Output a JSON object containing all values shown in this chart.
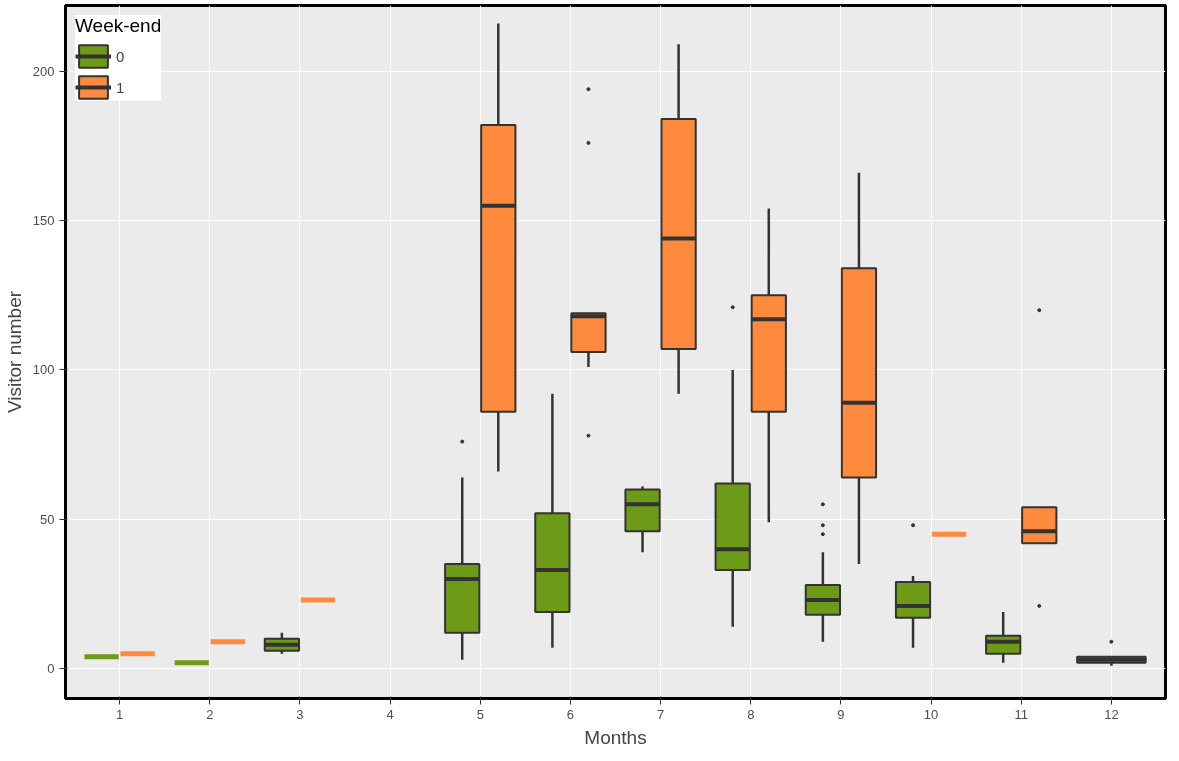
{
  "chart_data": {
    "type": "box",
    "xlabel": "Months",
    "ylabel": "Visitor number",
    "legend_title": "Week-end",
    "legend": "top left",
    "grid": true,
    "categories": [
      "1",
      "2",
      "3",
      "4",
      "5",
      "6",
      "7",
      "8",
      "9",
      "10",
      "11",
      "12"
    ],
    "ylim": [
      -10,
      222
    ],
    "yticks": [
      0,
      50,
      100,
      150,
      200
    ],
    "series": [
      {
        "name": "0",
        "color": "#6e9b17",
        "boxes": [
          {
            "low": 4,
            "q1": 4,
            "median": 4,
            "q3": 4,
            "high": 4
          },
          {
            "low": 2,
            "q1": 2,
            "median": 2,
            "q3": 2,
            "high": 2
          },
          {
            "low": 5,
            "q1": 6,
            "median": 8,
            "q3": 10,
            "high": 12
          },
          null,
          {
            "low": 3,
            "q1": 12,
            "median": 30,
            "q3": 35,
            "high": 64,
            "outliers": [
              76
            ]
          },
          {
            "low": 7,
            "q1": 19,
            "median": 33,
            "q3": 52,
            "high": 92
          },
          {
            "low": 39,
            "q1": 46,
            "median": 55,
            "q3": 60,
            "high": 61
          },
          {
            "low": 14,
            "q1": 33,
            "median": 40,
            "q3": 62,
            "high": 100,
            "outliers": [
              121
            ]
          },
          {
            "low": 9,
            "q1": 18,
            "median": 23,
            "q3": 28,
            "high": 39,
            "outliers": [
              45,
              48,
              55
            ]
          },
          {
            "low": 7,
            "q1": 17,
            "median": 21,
            "q3": 29,
            "high": 31,
            "outliers": [
              48
            ]
          },
          {
            "low": 2,
            "q1": 5,
            "median": 9,
            "q3": 11,
            "high": 19
          },
          {
            "low": 1,
            "q1": 2,
            "median": 3,
            "q3": 4,
            "high": 4,
            "outliers": [
              9
            ]
          }
        ]
      },
      {
        "name": "1",
        "color": "#fd8a3d",
        "boxes": [
          {
            "low": 5,
            "q1": 5,
            "median": 5,
            "q3": 5,
            "high": 5
          },
          {
            "low": 9,
            "q1": 9,
            "median": 9,
            "q3": 9,
            "high": 9
          },
          {
            "low": 23,
            "q1": 23,
            "median": 23,
            "q3": 23,
            "high": 23
          },
          null,
          {
            "low": 66,
            "q1": 86,
            "median": 155,
            "q3": 182,
            "high": 216
          },
          {
            "low": 101,
            "q1": 106,
            "median": 118,
            "q3": 119,
            "high": 119,
            "outliers": [
              78,
              176,
              194
            ]
          },
          {
            "low": 92,
            "q1": 107,
            "median": 144,
            "q3": 184,
            "high": 209
          },
          {
            "low": 49,
            "q1": 86,
            "median": 117,
            "q3": 125,
            "high": 154
          },
          {
            "low": 35,
            "q1": 64,
            "median": 89,
            "q3": 134,
            "high": 166
          },
          {
            "low": 45,
            "q1": 45,
            "median": 45,
            "q3": 45,
            "high": 45
          },
          {
            "low": 42,
            "q1": 42,
            "median": 46,
            "q3": 54,
            "high": 54,
            "outliers": [
              21,
              120
            ]
          },
          null
        ]
      }
    ]
  }
}
